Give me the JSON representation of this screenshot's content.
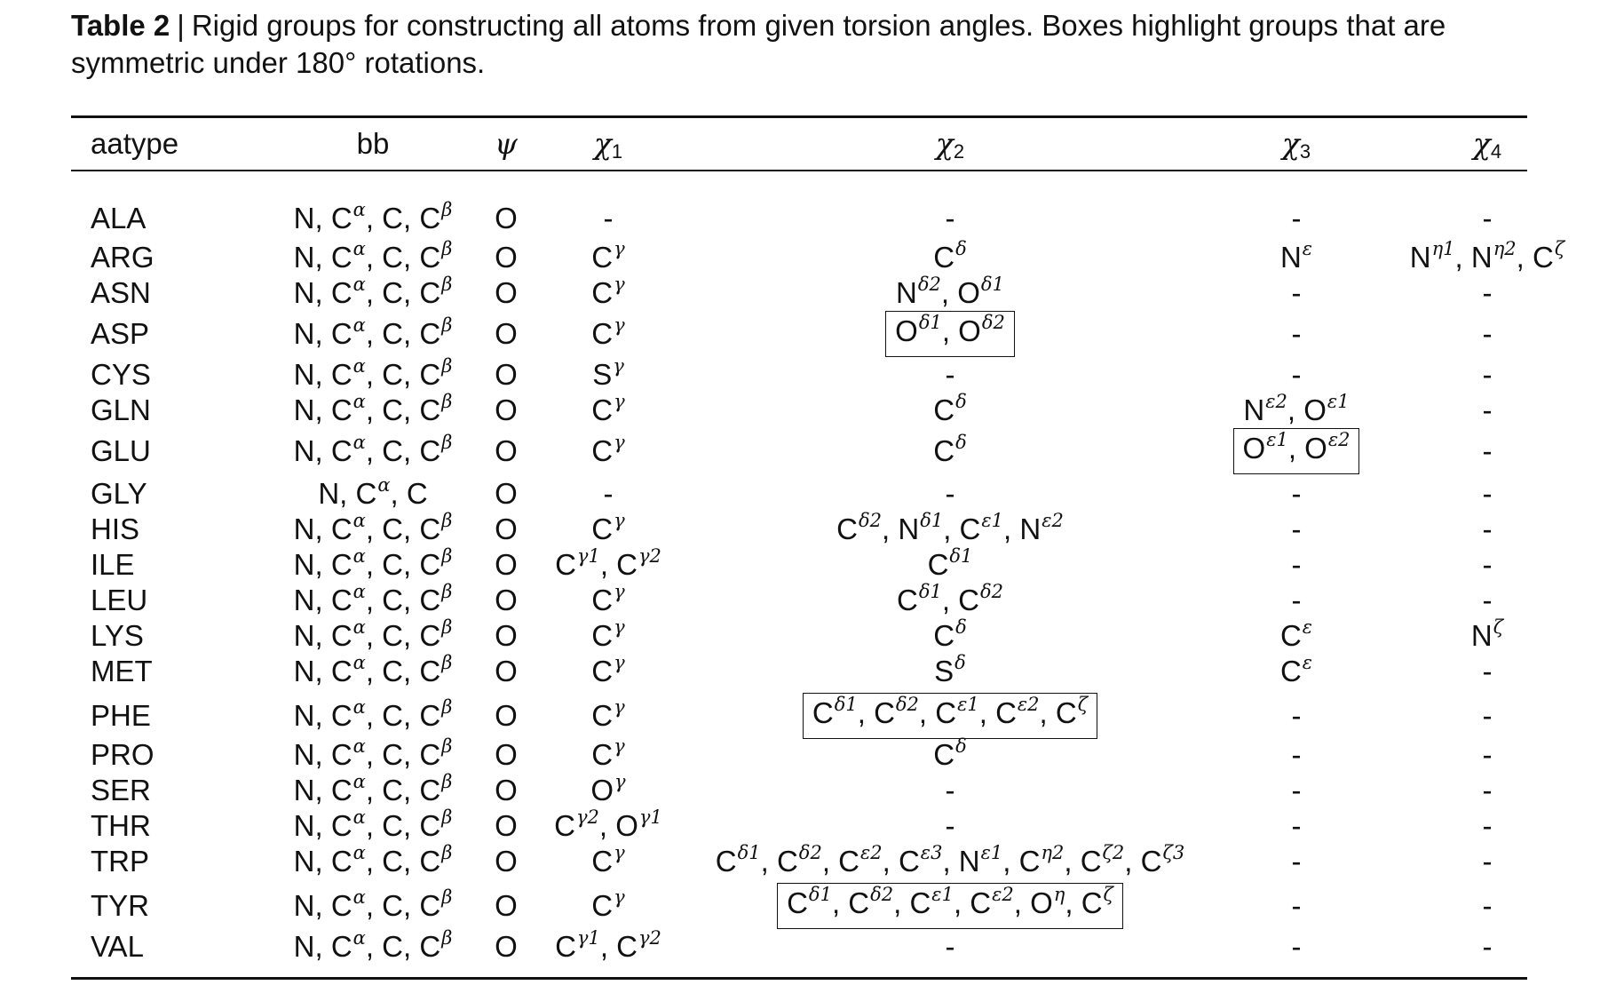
{
  "caption": {
    "label": "Table 2",
    "separator": "|",
    "text": "Rigid groups for constructing all atoms from given torsion angles. Boxes highlight groups that are symmetric under 180° rotations."
  },
  "table": {
    "headers": {
      "aatype": "aatype",
      "bb": "bb",
      "psi": "ψ",
      "chi1": "χ",
      "chi1_sub": "1",
      "chi2": "χ",
      "chi2_sub": "2",
      "chi3": "χ",
      "chi3_sub": "3",
      "chi4": "χ",
      "chi4_sub": "4"
    },
    "rows": [
      {
        "aatype": "ALA",
        "bb": "N, C^α, C, C^β",
        "psi": "O",
        "chi1": "-",
        "chi2": "-",
        "chi3": "-",
        "chi4": "-"
      },
      {
        "aatype": "ARG",
        "bb": "N, C^α, C, C^β",
        "psi": "O",
        "chi1": "C^γ",
        "chi2": "C^δ",
        "chi3": "N^ε",
        "chi4": "N^η1, N^η2, C^ζ"
      },
      {
        "aatype": "ASN",
        "bb": "N, C^α, C, C^β",
        "psi": "O",
        "chi1": "C^γ",
        "chi2": "N^δ2, O^δ1",
        "chi3": "-",
        "chi4": "-"
      },
      {
        "aatype": "ASP",
        "bb": "N, C^α, C, C^β",
        "psi": "O",
        "chi1": "C^γ",
        "chi2": "O^δ1, O^δ2",
        "chi2_boxed": true,
        "chi3": "-",
        "chi4": "-"
      },
      {
        "aatype": "CYS",
        "bb": "N, C^α, C, C^β",
        "psi": "O",
        "chi1": "S^γ",
        "chi2": "-",
        "chi3": "-",
        "chi4": "-"
      },
      {
        "aatype": "GLN",
        "bb": "N, C^α, C, C^β",
        "psi": "O",
        "chi1": "C^γ",
        "chi2": "C^δ",
        "chi3": "N^ε2, O^ε1",
        "chi4": "-"
      },
      {
        "aatype": "GLU",
        "bb": "N, C^α, C, C^β",
        "psi": "O",
        "chi1": "C^γ",
        "chi2": "C^δ",
        "chi3": "O^ε1, O^ε2",
        "chi3_boxed": true,
        "chi4": "-"
      },
      {
        "aatype": "GLY",
        "bb": "N, C^α, C",
        "psi": "O",
        "chi1": "-",
        "chi2": "-",
        "chi3": "-",
        "chi4": "-"
      },
      {
        "aatype": "HIS",
        "bb": "N, C^α, C, C^β",
        "psi": "O",
        "chi1": "C^γ",
        "chi2": "C^δ2, N^δ1, C^ε1, N^ε2",
        "chi3": "-",
        "chi4": "-"
      },
      {
        "aatype": "ILE",
        "bb": "N, C^α, C, C^β",
        "psi": "O",
        "chi1": "C^γ1, C^γ2",
        "chi2": "C^δ1",
        "chi3": "-",
        "chi4": "-"
      },
      {
        "aatype": "LEU",
        "bb": "N, C^α, C, C^β",
        "psi": "O",
        "chi1": "C^γ",
        "chi2": "C^δ1, C^δ2",
        "chi3": "-",
        "chi4": "-"
      },
      {
        "aatype": "LYS",
        "bb": "N, C^α, C, C^β",
        "psi": "O",
        "chi1": "C^γ",
        "chi2": "C^δ",
        "chi3": "C^ε",
        "chi4": "N^ζ"
      },
      {
        "aatype": "MET",
        "bb": "N, C^α, C, C^β",
        "psi": "O",
        "chi1": "C^γ",
        "chi2": "S^δ",
        "chi3": "C^ε",
        "chi4": "-"
      },
      {
        "aatype": "PHE",
        "bb": "N, C^α, C, C^β",
        "psi": "O",
        "chi1": "C^γ",
        "chi2": "C^δ1, C^δ2, C^ε1, C^ε2, C^ζ",
        "chi2_boxed": true,
        "chi3": "-",
        "chi4": "-"
      },
      {
        "aatype": "PRO",
        "bb": "N, C^α, C, C^β",
        "psi": "O",
        "chi1": "C^γ",
        "chi2": "C^δ",
        "chi3": "-",
        "chi4": "-"
      },
      {
        "aatype": "SER",
        "bb": "N, C^α, C, C^β",
        "psi": "O",
        "chi1": "O^γ",
        "chi2": "-",
        "chi3": "-",
        "chi4": "-"
      },
      {
        "aatype": "THR",
        "bb": "N, C^α, C, C^β",
        "psi": "O",
        "chi1": "C^γ2, O^γ1",
        "chi2": "-",
        "chi3": "-",
        "chi4": "-"
      },
      {
        "aatype": "TRP",
        "bb": "N, C^α, C, C^β",
        "psi": "O",
        "chi1": "C^γ",
        "chi2": "C^δ1, C^δ2, C^ε2, C^ε3, N^ε1, C^η2, C^ζ2, C^ζ3",
        "chi3": "-",
        "chi4": "-"
      },
      {
        "aatype": "TYR",
        "bb": "N, C^α, C, C^β",
        "psi": "O",
        "chi1": "C^γ",
        "chi2": "C^δ1, C^δ2, C^ε1, C^ε2, O^η, C^ζ",
        "chi2_boxed": true,
        "chi3": "-",
        "chi4": "-"
      },
      {
        "aatype": "VAL",
        "bb": "N, C^α, C, C^β",
        "psi": "O",
        "chi1": "C^γ1, C^γ2",
        "chi2": "-",
        "chi3": "-",
        "chi4": "-"
      }
    ]
  }
}
